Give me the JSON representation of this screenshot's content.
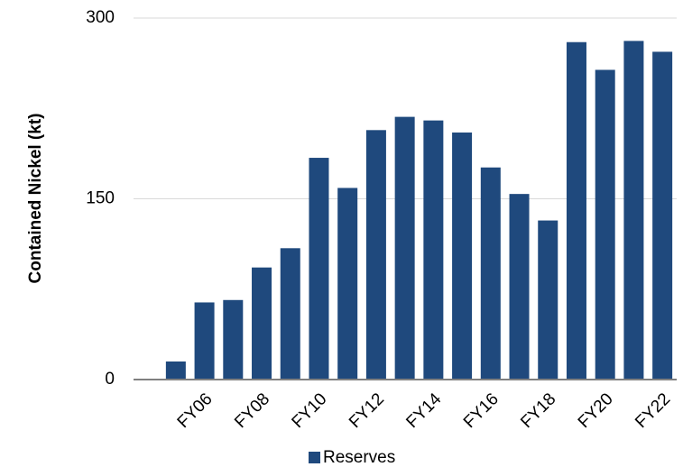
{
  "chart_data": {
    "type": "bar",
    "y_label": "Contained Nickel (kt)",
    "categories": [
      null,
      "FY06",
      null,
      "FY08",
      null,
      "FY10",
      null,
      "FY12",
      null,
      "FY14",
      null,
      "FY16",
      null,
      "FY18",
      null,
      "FY20",
      null,
      "FY22"
    ],
    "series": [
      {
        "name": "Reserves",
        "color": "#1f497d",
        "values": [
          15,
          64,
          66,
          93,
          109,
          184,
          159,
          207,
          218,
          215,
          205,
          176,
          154,
          132,
          280,
          257,
          281,
          272
        ]
      }
    ],
    "ylim": [
      0,
      300
    ],
    "yticks": [
      0,
      150,
      300
    ],
    "grid": true
  }
}
